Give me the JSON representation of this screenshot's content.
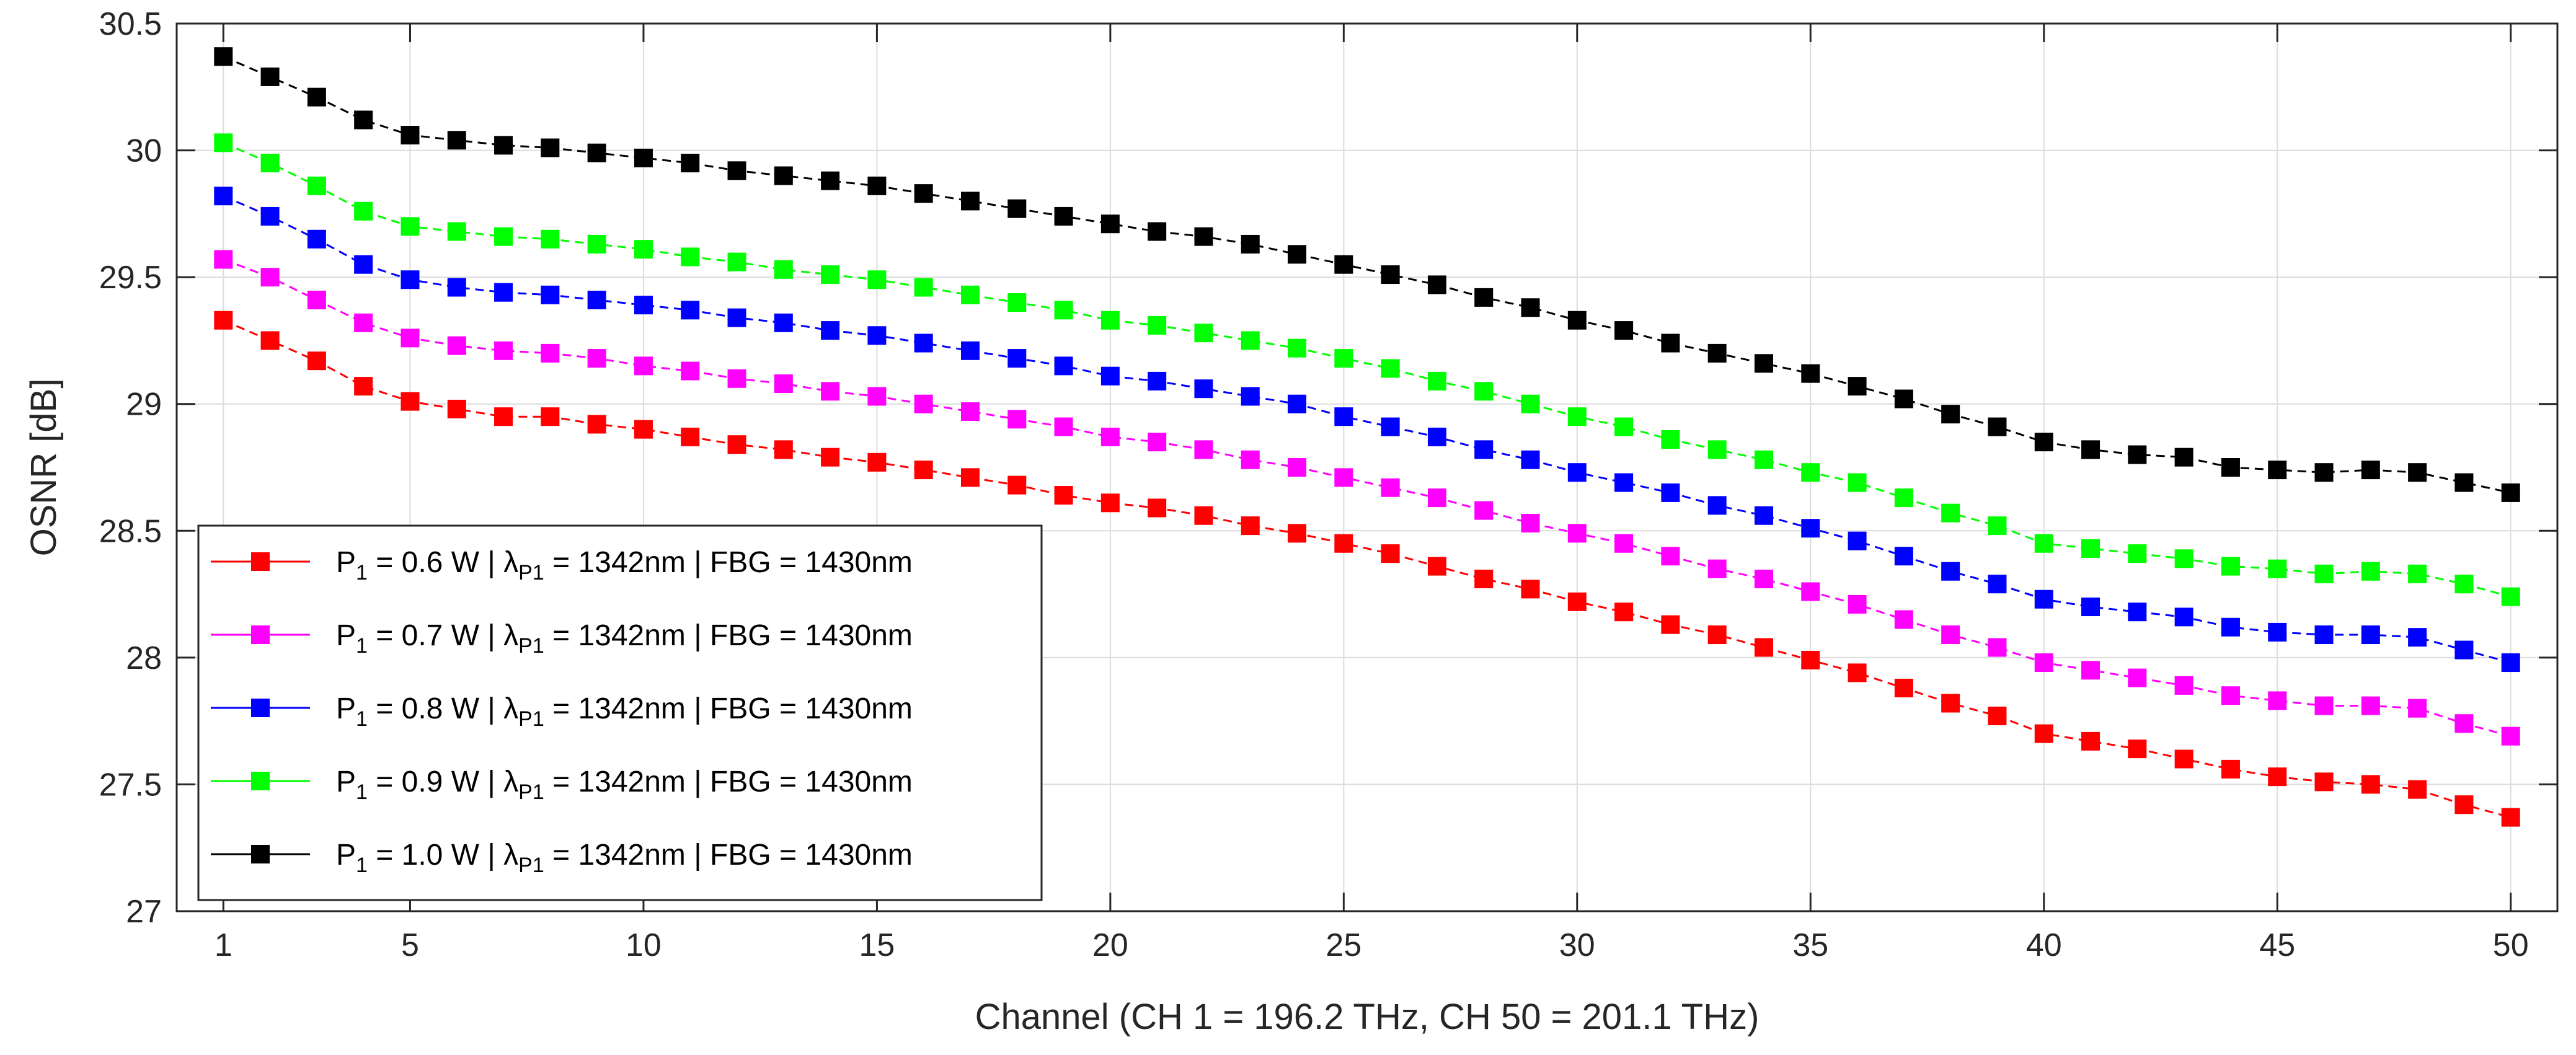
{
  "chart_data": {
    "type": "line",
    "title": "",
    "xlabel": "Channel (CH 1 = 196.2 THz, CH 50 = 201.1 THz)",
    "ylabel": "OSNR [dB]",
    "xlim": [
      0,
      51
    ],
    "ylim": [
      27,
      30.5
    ],
    "xticks": [
      1,
      5,
      10,
      15,
      20,
      25,
      30,
      35,
      40,
      45,
      50
    ],
    "xtick_labels": [
      "1",
      "5",
      "10",
      "15",
      "20",
      "25",
      "30",
      "35",
      "40",
      "45",
      "50"
    ],
    "yticks": [
      27,
      27.5,
      28,
      28.5,
      29,
      29.5,
      30,
      30.5
    ],
    "ytick_labels": [
      "27",
      "27.5",
      "28",
      "28.5",
      "29",
      "29.5",
      "30",
      "30.5"
    ],
    "grid": true,
    "legend_position": "bottom-left",
    "x": [
      1,
      2,
      3,
      4,
      5,
      6,
      7,
      8,
      9,
      10,
      11,
      12,
      13,
      14,
      15,
      16,
      17,
      18,
      19,
      20,
      21,
      22,
      23,
      24,
      25,
      26,
      27,
      28,
      29,
      30,
      31,
      32,
      33,
      34,
      35,
      36,
      37,
      38,
      39,
      40,
      41,
      42,
      43,
      44,
      45,
      46,
      47,
      48,
      49,
      50
    ],
    "series": [
      {
        "name": "P1 = 0.6 W | λP1 = 1342nm | FBG = 1430nm",
        "legend": {
          "p": "P",
          "p_sub": "1",
          "p_rest": " = 0.6 W | λ",
          "l_sub": "P1",
          "l_rest": " = 1342nm | FBG = 1430nm"
        },
        "color": "#ff0000",
        "values": [
          29.33,
          29.25,
          29.17,
          29.07,
          29.01,
          28.98,
          28.95,
          28.95,
          28.92,
          28.9,
          28.87,
          28.84,
          28.82,
          28.79,
          28.77,
          28.74,
          28.71,
          28.68,
          28.64,
          28.61,
          28.59,
          28.56,
          28.52,
          28.49,
          28.45,
          28.41,
          28.36,
          28.31,
          28.27,
          28.22,
          28.18,
          28.13,
          28.09,
          28.04,
          27.99,
          27.94,
          27.88,
          27.82,
          27.77,
          27.7,
          27.67,
          27.64,
          27.6,
          27.56,
          27.53,
          27.51,
          27.5,
          27.48,
          27.42,
          27.37
        ]
      },
      {
        "name": "P1 = 0.7 W | λP1 = 1342nm | FBG = 1430nm",
        "legend": {
          "p": "P",
          "p_sub": "1",
          "p_rest": " = 0.7 W | λ",
          "l_sub": "P1",
          "l_rest": " = 1342nm | FBG = 1430nm"
        },
        "color": "#ff00ff",
        "values": [
          29.57,
          29.5,
          29.41,
          29.32,
          29.26,
          29.23,
          29.21,
          29.2,
          29.18,
          29.15,
          29.13,
          29.1,
          29.08,
          29.05,
          29.03,
          29.0,
          28.97,
          28.94,
          28.91,
          28.87,
          28.85,
          28.82,
          28.78,
          28.75,
          28.71,
          28.67,
          28.63,
          28.58,
          28.53,
          28.49,
          28.45,
          28.4,
          28.35,
          28.31,
          28.26,
          28.21,
          28.15,
          28.09,
          28.04,
          27.98,
          27.95,
          27.92,
          27.89,
          27.85,
          27.83,
          27.81,
          27.81,
          27.8,
          27.74,
          27.69
        ]
      },
      {
        "name": "P1 = 0.8 W | λP1 = 1342nm | FBG = 1430nm",
        "legend": {
          "p": "P",
          "p_sub": "1",
          "p_rest": " = 0.8 W | λ",
          "l_sub": "P1",
          "l_rest": " = 1342nm | FBG = 1430nm"
        },
        "color": "#0000ff",
        "values": [
          29.82,
          29.74,
          29.65,
          29.55,
          29.49,
          29.46,
          29.44,
          29.43,
          29.41,
          29.39,
          29.37,
          29.34,
          29.32,
          29.29,
          29.27,
          29.24,
          29.21,
          29.18,
          29.15,
          29.11,
          29.09,
          29.06,
          29.03,
          29.0,
          28.95,
          28.91,
          28.87,
          28.82,
          28.78,
          28.73,
          28.69,
          28.65,
          28.6,
          28.56,
          28.51,
          28.46,
          28.4,
          28.34,
          28.29,
          28.23,
          28.2,
          28.18,
          28.16,
          28.12,
          28.1,
          28.09,
          28.09,
          28.08,
          28.03,
          27.98
        ]
      },
      {
        "name": "P1 = 0.9 W | λP1 = 1342nm | FBG = 1430nm",
        "legend": {
          "p": "P",
          "p_sub": "1",
          "p_rest": " = 0.9 W | λ",
          "l_sub": "P1",
          "l_rest": " = 1342nm | FBG = 1430nm"
        },
        "color": "#00ff00",
        "values": [
          30.03,
          29.95,
          29.86,
          29.76,
          29.7,
          29.68,
          29.66,
          29.65,
          29.63,
          29.61,
          29.58,
          29.56,
          29.53,
          29.51,
          29.49,
          29.46,
          29.43,
          29.4,
          29.37,
          29.33,
          29.31,
          29.28,
          29.25,
          29.22,
          29.18,
          29.14,
          29.09,
          29.05,
          29.0,
          28.95,
          28.91,
          28.86,
          28.82,
          28.78,
          28.73,
          28.69,
          28.63,
          28.57,
          28.52,
          28.45,
          28.43,
          28.41,
          28.39,
          28.36,
          28.35,
          28.33,
          28.34,
          28.33,
          28.29,
          28.24
        ]
      },
      {
        "name": "P1 = 1.0 W | λP1 = 1342nm | FBG = 1430nm",
        "legend": {
          "p": "P",
          "p_sub": "1",
          "p_rest": " = 1.0 W | λ",
          "l_sub": "P1",
          "l_rest": " = 1342nm | FBG = 1430nm"
        },
        "color": "#000000",
        "values": [
          30.37,
          30.29,
          30.21,
          30.12,
          30.06,
          30.04,
          30.02,
          30.01,
          29.99,
          29.97,
          29.95,
          29.92,
          29.9,
          29.88,
          29.86,
          29.83,
          29.8,
          29.77,
          29.74,
          29.71,
          29.68,
          29.66,
          29.63,
          29.59,
          29.55,
          29.51,
          29.47,
          29.42,
          29.38,
          29.33,
          29.29,
          29.24,
          29.2,
          29.16,
          29.12,
          29.07,
          29.02,
          28.96,
          28.91,
          28.85,
          28.82,
          28.8,
          28.79,
          28.75,
          28.74,
          28.73,
          28.74,
          28.73,
          28.69,
          28.65
        ]
      }
    ]
  }
}
